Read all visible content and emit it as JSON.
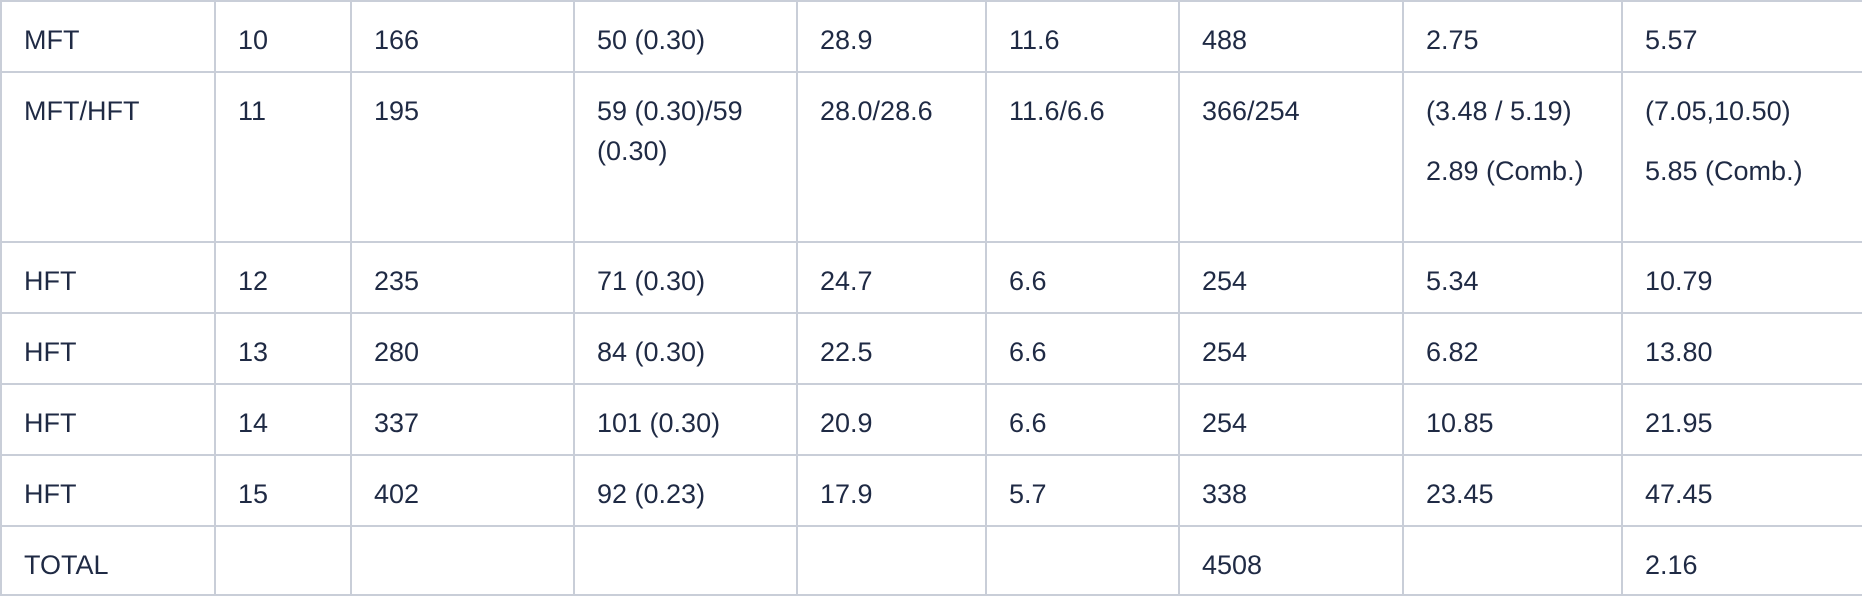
{
  "table": {
    "rows": [
      [
        "MFT",
        "10",
        "166",
        "50 (0.30)",
        "28.9",
        "11.6",
        "488",
        "2.75",
        "5.57"
      ],
      [
        "MFT/HFT",
        "11",
        "195",
        "59 (0.30)/59 (0.30)",
        "28.0/28.6",
        "11.6/6.6",
        "366/254",
        [
          "(3.48 / 5.19)",
          "2.89 (Comb.)"
        ],
        [
          "(7.05,10.50)",
          "5.85 (Comb.)"
        ]
      ],
      [
        "HFT",
        "12",
        "235",
        "71 (0.30)",
        "24.7",
        "6.6",
        "254",
        "5.34",
        "10.79"
      ],
      [
        "HFT",
        "13",
        "280",
        "84 (0.30)",
        "22.5",
        "6.6",
        "254",
        "6.82",
        "13.80"
      ],
      [
        "HFT",
        "14",
        "337",
        "101 (0.30)",
        "20.9",
        "6.6",
        "254",
        "10.85",
        "21.95"
      ],
      [
        "HFT",
        "15",
        "402",
        "92 (0.23)",
        "17.9",
        "5.7",
        "338",
        "23.45",
        "47.45"
      ],
      [
        "TOTAL",
        "",
        "",
        "",
        "",
        "",
        "4508",
        "",
        "2.16"
      ]
    ]
  }
}
